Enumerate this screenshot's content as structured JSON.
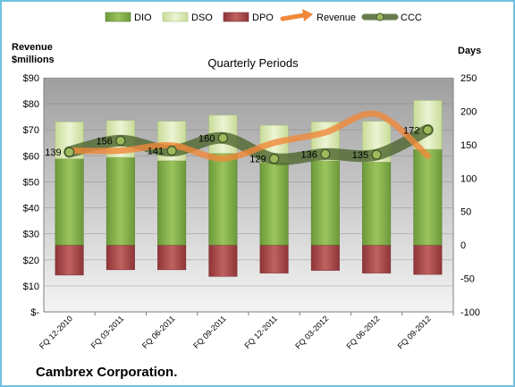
{
  "chart_data": {
    "type": "bar",
    "title": "Quarterly Periods",
    "company": "Cambrex Corporation.",
    "left_axis_title_line1": "Revenue",
    "left_axis_title_line2": "$millions",
    "right_axis_title": "Days",
    "left_axis": {
      "min": 0,
      "max": 90,
      "step": 10,
      "tick_labels": [
        "$-",
        "$10",
        "$20",
        "$30",
        "$40",
        "$50",
        "$60",
        "$70",
        "$80",
        "$90"
      ]
    },
    "right_axis": {
      "min": -100,
      "max": 250,
      "step": 50,
      "tick_labels": [
        "-100",
        "-50",
        "0",
        "50",
        "100",
        "150",
        "200",
        "250"
      ]
    },
    "categories": [
      "FQ 12-2010",
      "FQ 03-2011",
      "FQ 06-2011",
      "FQ 09-2011",
      "FQ 12-2011",
      "FQ 03-2012",
      "FQ 06-2012",
      "FQ 09-2012"
    ],
    "series": [
      {
        "name": "DIO",
        "type": "bar",
        "axis": "right",
        "values": [
          129,
          131,
          126,
          137,
          123,
          126,
          124,
          143
        ]
      },
      {
        "name": "DSO",
        "type": "bar",
        "axis": "right",
        "values": [
          55,
          55,
          59,
          57,
          56,
          58,
          61,
          73
        ]
      },
      {
        "name": "DPO",
        "type": "bar",
        "axis": "right",
        "values": [
          -45,
          -37,
          -37,
          -47,
          -42,
          -38,
          -42,
          -44
        ]
      },
      {
        "name": "Revenue",
        "type": "line",
        "axis": "left",
        "values": [
          62,
          62,
          64,
          59,
          65,
          69,
          76,
          60
        ]
      },
      {
        "name": "CCC",
        "type": "line",
        "axis": "right",
        "values": [
          139,
          156,
          141,
          160,
          129,
          136,
          135,
          172
        ]
      }
    ],
    "ccc_labels": [
      "139",
      "156",
      "141",
      "160",
      "129",
      "136",
      "135",
      "172"
    ],
    "legend_position": "top",
    "grid": true,
    "colors": {
      "DIO": "#7fa84a",
      "DSO": "#d8e8b0",
      "DPO": "#a8474a",
      "Revenue": "#f0883a",
      "CCC": "#4e6630",
      "frame": "#6fc1de",
      "plot_top": "#9e9e9e",
      "plot_bottom": "#f4f4f4"
    }
  }
}
